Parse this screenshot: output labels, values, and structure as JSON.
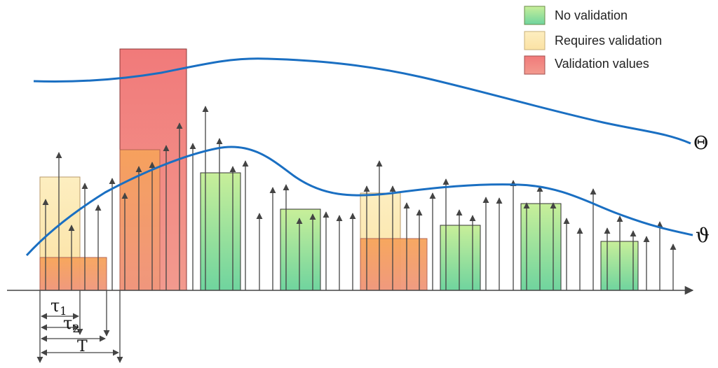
{
  "legend": {
    "items": [
      {
        "label": "No validation",
        "swatch": "green"
      },
      {
        "label": "Requires validation",
        "swatch": "yellow"
      },
      {
        "label": "Validation values",
        "swatch": "red"
      }
    ]
  },
  "curves": {
    "upper_label": "Θ",
    "lower_label": "ϑ",
    "color": "#1a6fc2"
  },
  "annotations": {
    "tau1": "τ",
    "tau1_sub": "1",
    "tau2": "τ",
    "tau2_sub": "2",
    "period": "T"
  },
  "colors": {
    "green_top": "#c6ef9c",
    "green_bottom": "#6fd49c",
    "yellow": "#fde9b4",
    "red": "#f08080",
    "orange_top": "#f7a25e",
    "orange_bottom": "#f09a7a",
    "curve": "#1a6fc2",
    "arrow": "#444444"
  }
}
